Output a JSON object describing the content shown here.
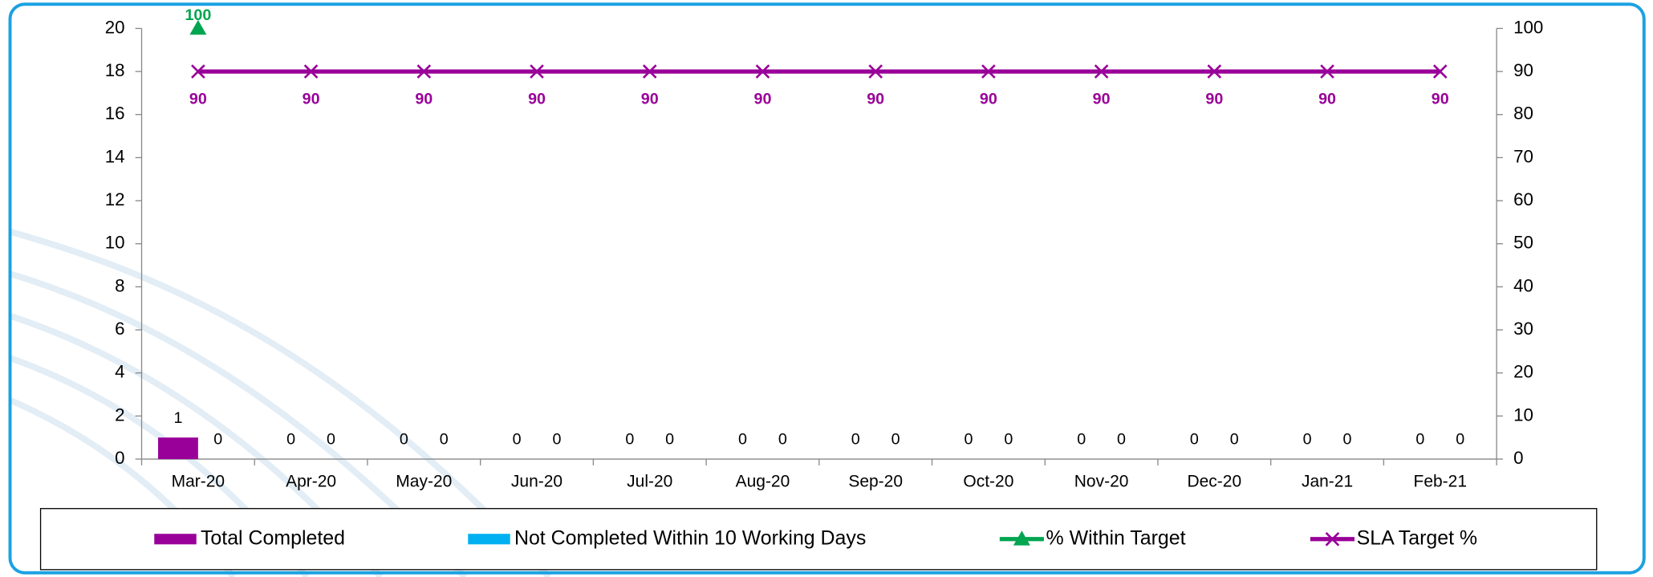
{
  "chart_data": {
    "type": "bar",
    "categories": [
      "Mar-20",
      "Apr-20",
      "May-20",
      "Jun-20",
      "Jul-20",
      "Aug-20",
      "Sep-20",
      "Oct-20",
      "Nov-20",
      "Dec-20",
      "Jan-21",
      "Feb-21"
    ],
    "series": [
      {
        "name": "Total Completed",
        "type": "bar",
        "color": "#990099",
        "values": [
          1,
          0,
          0,
          0,
          0,
          0,
          0,
          0,
          0,
          0,
          0,
          0
        ]
      },
      {
        "name": "Not Completed Within 10 Working Days",
        "type": "bar",
        "color": "#00b0f0",
        "values": [
          0,
          0,
          0,
          0,
          0,
          0,
          0,
          0,
          0,
          0,
          0,
          0
        ]
      },
      {
        "name": "% Within Target",
        "type": "line",
        "axis": "y2",
        "marker": "triangle",
        "color": "#00a550",
        "values": [
          100,
          null,
          null,
          null,
          null,
          null,
          null,
          null,
          null,
          null,
          null,
          null
        ]
      },
      {
        "name": "SLA Target %",
        "type": "line",
        "axis": "y2",
        "marker": "x",
        "color": "#990099",
        "values": [
          90,
          90,
          90,
          90,
          90,
          90,
          90,
          90,
          90,
          90,
          90,
          90
        ]
      }
    ],
    "ylim": [
      0,
      20
    ],
    "yticks": [
      0,
      2,
      4,
      6,
      8,
      10,
      12,
      14,
      16,
      18,
      20
    ],
    "y2lim": [
      0,
      100
    ],
    "y2ticks": [
      0,
      10,
      20,
      30,
      40,
      50,
      60,
      70,
      80,
      90,
      100
    ],
    "grid": false,
    "legend": "bottom"
  }
}
